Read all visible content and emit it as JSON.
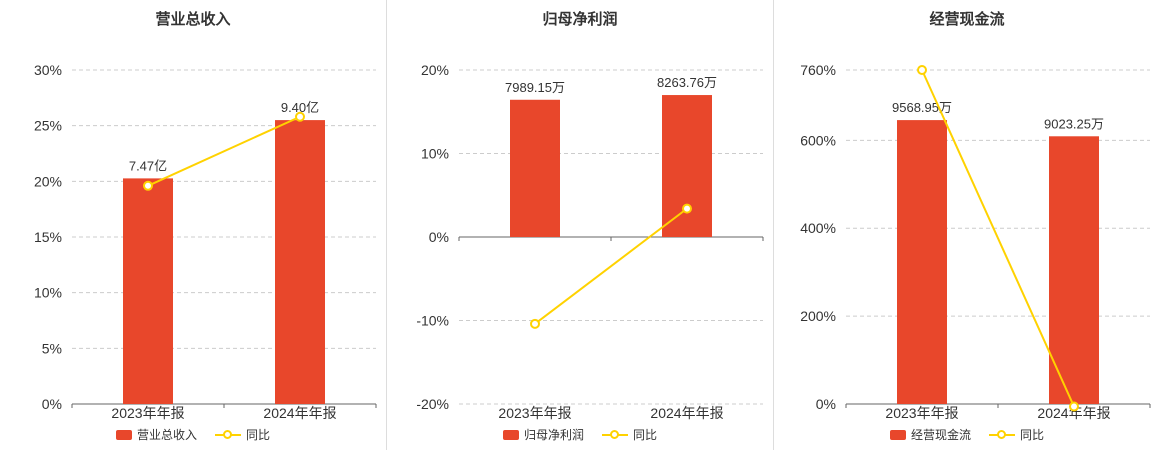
{
  "page": {
    "background": "#ffffff"
  },
  "style": {
    "bar_color": "#E8472B",
    "line_color": "#FFD200",
    "text_color": "#333333",
    "axis_color": "#666666",
    "grid_color": "#cccccc",
    "divider_color": "#dddddd"
  },
  "chart_data": [
    {
      "type": "bar+line",
      "title": "营业总收入",
      "categories": [
        "2023年年报",
        "2024年年报"
      ],
      "bar_series": {
        "name": "营业总收入",
        "values": [
          7.47,
          9.4
        ],
        "unit": "亿",
        "labels": [
          "7.47亿",
          "9.40亿"
        ]
      },
      "line_series": {
        "name": "同比",
        "values_pct": [
          19.6,
          25.8
        ]
      },
      "ylim": [
        0,
        30
      ],
      "yticks": [
        30,
        25,
        20,
        15,
        10,
        5,
        0
      ],
      "ytick_suffix": "%",
      "legend_position": "bottom",
      "grid": true,
      "bar_axis_fraction": 0.85
    },
    {
      "type": "bar+line",
      "title": "归母净利润",
      "categories": [
        "2023年年报",
        "2024年年报"
      ],
      "bar_series": {
        "name": "归母净利润",
        "values": [
          7989.15,
          8263.76
        ],
        "unit": "万",
        "labels": [
          "7989.15万",
          "8263.76万"
        ]
      },
      "line_series": {
        "name": "同比",
        "values_pct": [
          -10.4,
          3.4
        ]
      },
      "ylim": [
        -20,
        20
      ],
      "yticks": [
        20,
        10,
        0,
        -10,
        -20
      ],
      "ytick_suffix": "%",
      "legend_position": "bottom",
      "grid": true,
      "bar_axis_fraction": 0.85
    },
    {
      "type": "bar+line",
      "title": "经营现金流",
      "categories": [
        "2023年年报",
        "2024年年报"
      ],
      "bar_series": {
        "name": "经营现金流",
        "values": [
          9568.95,
          9023.25
        ],
        "unit": "万",
        "labels": [
          "9568.95万",
          "9023.25万"
        ]
      },
      "line_series": {
        "name": "同比",
        "values_pct": [
          760,
          -5.7
        ]
      },
      "ylim": [
        0,
        760
      ],
      "yticks": [
        760,
        600,
        400,
        200,
        0
      ],
      "ytick_suffix": "%",
      "legend_position": "bottom",
      "grid": true,
      "bar_axis_fraction": 0.85
    }
  ]
}
